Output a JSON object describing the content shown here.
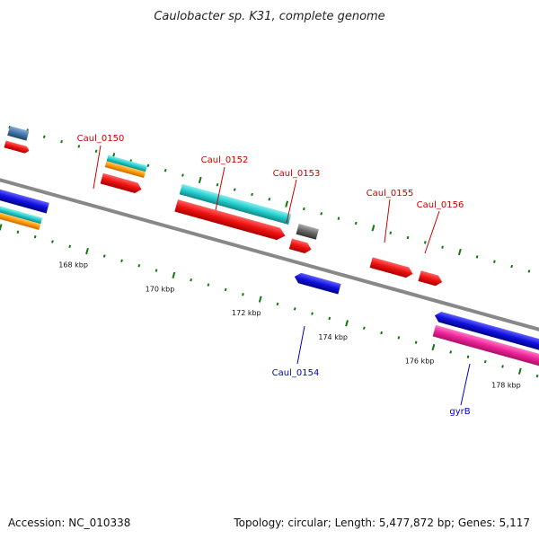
{
  "title": "Caulobacter sp. K31, complete genome",
  "accession": "Accession: NC_010338",
  "summary": "Topology: circular; Length: 5,477,872 bp; Genes: 5,117",
  "scale_labels": [
    "168 kbp",
    "170 kbp",
    "172 kbp",
    "174 kbp",
    "176 kbp",
    "178 kbp"
  ],
  "gene_labels": {
    "caul_0150": "Caul_0150",
    "caul_0152": "Caul_0152",
    "caul_0153": "Caul_0153",
    "caul_0154": "Caul_0154",
    "caul_0155": "Caul_0155",
    "caul_0156": "Caul_0156",
    "gyrb": "gyrB"
  },
  "colors": {
    "forward_label": "#cc0000",
    "reverse_label": "#0000cc",
    "gene_red": "#ee1111",
    "gene_blue": "#1111dd",
    "gene_cyan": "#22cccc",
    "gene_orange": "#ff9900",
    "gene_pink": "#ee2299",
    "gene_gray": "#666666",
    "backbone": "#888888",
    "ticks": "#117711"
  }
}
